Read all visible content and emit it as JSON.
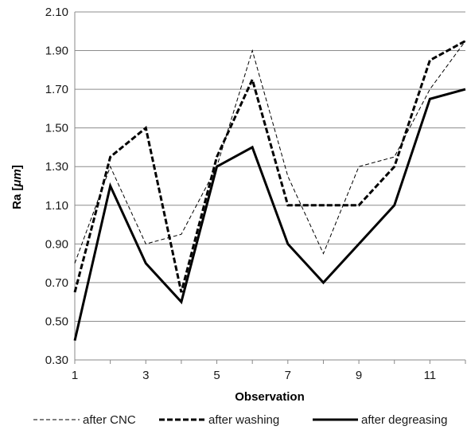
{
  "chart_data": {
    "type": "line",
    "title": "",
    "xlabel": "Observation",
    "ylabel_main": "Ra [",
    "ylabel_unit": "μm",
    "ylabel_end": "]",
    "x": [
      1,
      2,
      3,
      4,
      5,
      6,
      7,
      8,
      9,
      10,
      11,
      12
    ],
    "xticks": [
      "1",
      "3",
      "5",
      "7",
      "9",
      "11"
    ],
    "xtick_values": [
      1,
      3,
      5,
      7,
      9,
      11
    ],
    "xlim": [
      1,
      12
    ],
    "ylim": [
      0.3,
      2.1
    ],
    "yticks": [
      "0.30",
      "0.50",
      "0.70",
      "0.90",
      "1.10",
      "1.30",
      "1.50",
      "1.70",
      "1.90",
      "2.10"
    ],
    "ytick_values": [
      0.3,
      0.5,
      0.7,
      0.9,
      1.1,
      1.3,
      1.5,
      1.7,
      1.9,
      2.1
    ],
    "grid": true,
    "legend_position": "bottom",
    "series": [
      {
        "name": "after CNC",
        "style": "thin-dashed",
        "values": [
          0.8,
          1.3,
          0.9,
          0.95,
          1.3,
          1.9,
          1.25,
          0.85,
          1.3,
          1.35,
          1.7,
          1.95
        ]
      },
      {
        "name": "after washing",
        "style": "thick-dashed",
        "values": [
          0.65,
          1.35,
          1.5,
          0.65,
          1.35,
          1.75,
          1.1,
          1.1,
          1.1,
          1.3,
          1.85,
          1.95
        ]
      },
      {
        "name": "after degreasing",
        "style": "thick-solid",
        "values": [
          0.4,
          1.2,
          0.8,
          0.6,
          1.3,
          1.4,
          0.9,
          0.7,
          0.9,
          1.1,
          1.65,
          1.7
        ]
      }
    ]
  }
}
